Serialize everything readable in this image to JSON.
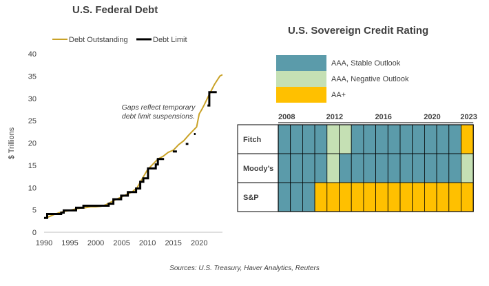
{
  "chart_data": [
    {
      "type": "line",
      "title": "U.S. Federal Debt",
      "xlabel": "",
      "ylabel": "$ Trillions",
      "xlim": [
        1990,
        2024.5
      ],
      "ylim": [
        0,
        40
      ],
      "x_ticks": [
        "1990",
        "1995",
        "2000",
        "2005",
        "2010",
        "2015",
        "2020"
      ],
      "y_ticks": [
        "0",
        "5",
        "10",
        "15",
        "20",
        "25",
        "30",
        "35",
        "40"
      ],
      "legend_position": "top",
      "annotation": [
        "Gaps reflect temporary",
        "debt limit suspensions."
      ],
      "series": [
        {
          "name": "Debt Outstanding",
          "color": "#C9A227",
          "x": [
            1990,
            1991,
            1992,
            1993,
            1994,
            1995,
            1996,
            1997,
            1998,
            1999,
            2000,
            2001,
            2002,
            2003,
            2004,
            2005,
            2006,
            2007,
            2008,
            2009,
            2010,
            2011,
            2012,
            2013,
            2014,
            2015,
            2016,
            2017,
            2018,
            2019,
            2019.5,
            2020,
            2020.5,
            2021,
            2022,
            2023,
            2024,
            2024.5
          ],
          "y": [
            3.1,
            3.5,
            4.0,
            4.4,
            4.7,
            4.9,
            5.2,
            5.4,
            5.5,
            5.7,
            5.7,
            5.8,
            6.2,
            6.8,
            7.4,
            7.9,
            8.5,
            9.0,
            10.0,
            12.0,
            14.0,
            15.2,
            16.4,
            17.0,
            17.9,
            18.4,
            19.6,
            20.5,
            21.8,
            23.0,
            23.6,
            26.5,
            27.5,
            28.6,
            31.0,
            33.2,
            35.0,
            35.3
          ]
        },
        {
          "name": "Debt Limit",
          "color": "#000000",
          "segments": [
            [
              [
                1990,
                3.2
              ],
              [
                1990.6,
                3.2
              ],
              [
                1990.6,
                4.1
              ],
              [
                1993.3,
                4.1
              ],
              [
                1993.3,
                4.4
              ],
              [
                1993.8,
                4.4
              ],
              [
                1993.8,
                4.9
              ],
              [
                1996.2,
                4.9
              ],
              [
                1996.2,
                5.5
              ],
              [
                1997.6,
                5.5
              ],
              [
                1997.6,
                5.95
              ],
              [
                2002.5,
                5.95
              ],
              [
                2002.5,
                6.4
              ],
              [
                2003.4,
                6.4
              ],
              [
                2003.4,
                7.4
              ],
              [
                2004.9,
                7.4
              ],
              [
                2004.9,
                8.2
              ],
              [
                2006.2,
                8.2
              ],
              [
                2006.2,
                9.0
              ],
              [
                2007.8,
                9.0
              ],
              [
                2007.8,
                9.8
              ],
              [
                2008.6,
                9.8
              ],
              [
                2008.6,
                11.3
              ],
              [
                2009.2,
                11.3
              ],
              [
                2009.2,
                12.1
              ],
              [
                2010.1,
                12.1
              ],
              [
                2010.1,
                14.3
              ],
              [
                2011.6,
                14.3
              ],
              [
                2011.6,
                15.2
              ],
              [
                2012.0,
                15.2
              ],
              [
                2012.0,
                16.4
              ],
              [
                2013.2,
                16.4
              ]
            ],
            [
              [
                2014.9,
                18.1
              ],
              [
                2015.7,
                18.1
              ]
            ],
            [
              [
                2017.4,
                19.8
              ],
              [
                2017.9,
                19.8
              ]
            ],
            [
              [
                2019.0,
                22.0
              ],
              [
                2019.3,
                22.0
              ]
            ],
            [
              [
                2021.6,
                28.4
              ],
              [
                2021.95,
                28.4
              ],
              [
                2021.95,
                31.4
              ],
              [
                2023.4,
                31.4
              ]
            ]
          ]
        }
      ]
    },
    {
      "type": "heatmap",
      "title": "U.S. Sovereign Credit Rating",
      "x_ticks": [
        "2008",
        "2012",
        "2016",
        "2020",
        "2023"
      ],
      "years": [
        2008,
        2009,
        2010,
        2011,
        2012,
        2013,
        2014,
        2015,
        2016,
        2017,
        2018,
        2019,
        2020,
        2021,
        2022,
        2023
      ],
      "legend": [
        {
          "label": "AAA, Stable Outlook",
          "color": "#5B9BAA"
        },
        {
          "label": "AAA, Negative Outlook",
          "color": "#C5E0B4"
        },
        {
          "label": "AA+",
          "color": "#FFC000"
        }
      ],
      "rows": [
        {
          "label": "Fitch",
          "ratings": [
            0,
            0,
            0,
            0,
            1,
            1,
            0,
            0,
            0,
            0,
            0,
            0,
            0,
            0,
            0,
            2
          ]
        },
        {
          "label": "Moody’s",
          "ratings": [
            0,
            0,
            0,
            0,
            1,
            0,
            0,
            0,
            0,
            0,
            0,
            0,
            0,
            0,
            0,
            1
          ]
        },
        {
          "label": "S&P",
          "ratings": [
            0,
            0,
            0,
            2,
            2,
            2,
            2,
            2,
            2,
            2,
            2,
            2,
            2,
            2,
            2,
            2
          ]
        }
      ]
    }
  ],
  "source": "Sources: U.S. Treasury, Haver Analytics, Reuters"
}
